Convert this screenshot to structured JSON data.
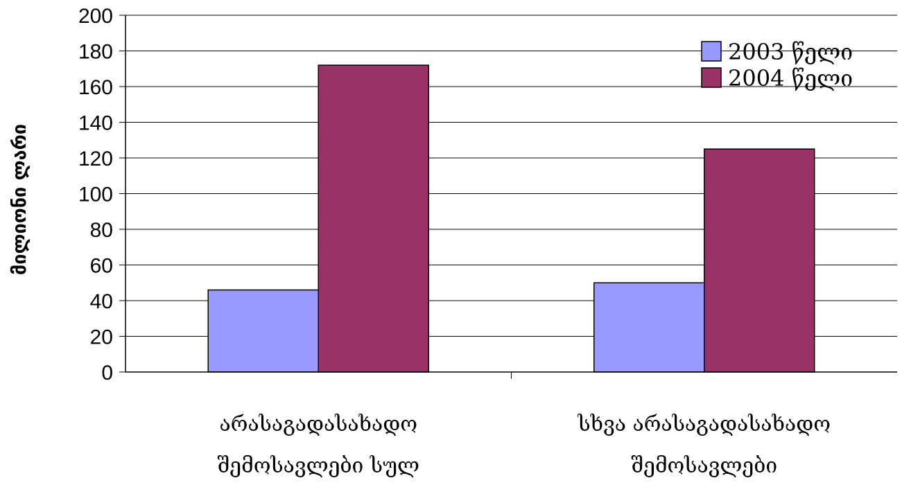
{
  "chart_data": {
    "type": "bar",
    "title": "",
    "ylabel": "მილიონი ლარი",
    "xlabel": "",
    "ylim": [
      0,
      200
    ],
    "yticks": [
      0,
      20,
      40,
      60,
      80,
      100,
      120,
      140,
      160,
      180,
      200
    ],
    "grid": true,
    "legend_position": "top-right",
    "categories": [
      [
        "არასაგადასახადო",
        "შემოსავლები სულ"
      ],
      [
        "სხვა არასაგადასახადო",
        "შემოსავლები"
      ]
    ],
    "series": [
      {
        "name": "2003 წელი",
        "color": "#9999FF",
        "values": [
          46,
          50
        ]
      },
      {
        "name": "2004 წელი",
        "color": "#993366",
        "values": [
          172,
          125
        ]
      }
    ]
  }
}
